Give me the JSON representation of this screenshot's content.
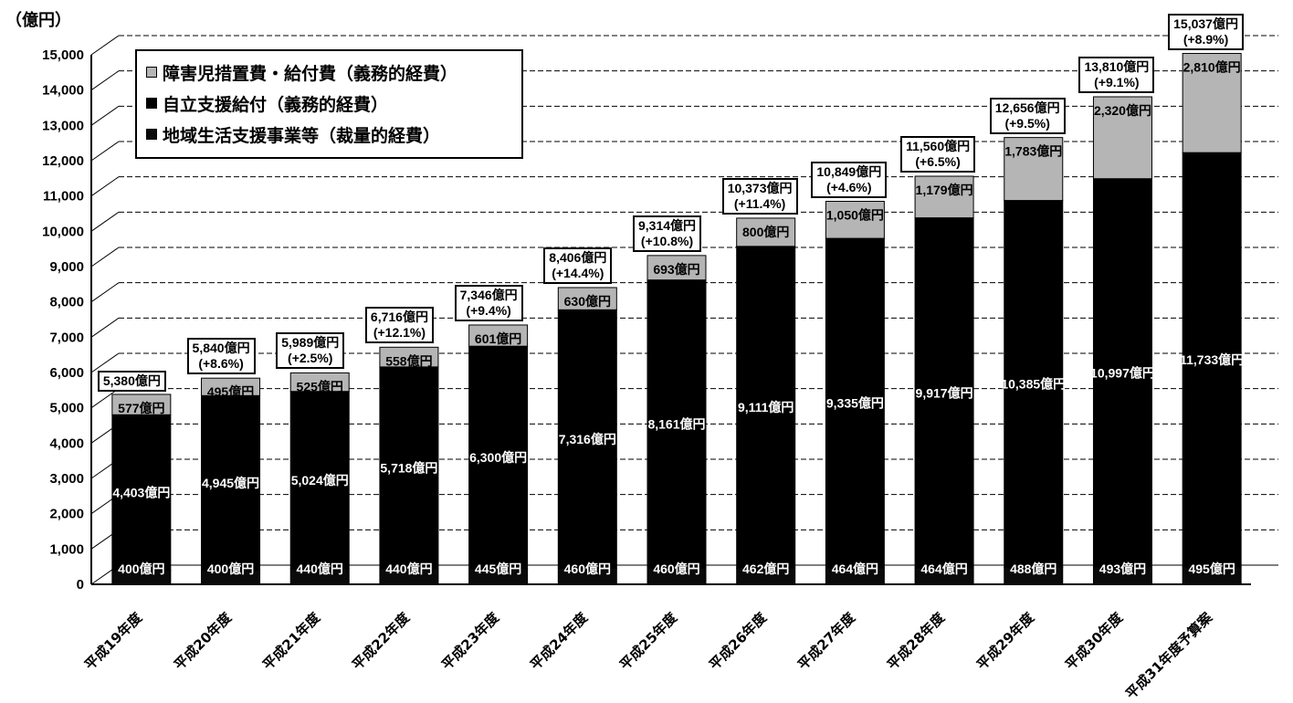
{
  "chart_data": {
    "type": "bar",
    "stacked": true,
    "ylabel": "（億円）",
    "ylim": [
      0,
      15000
    ],
    "yticks": [
      "0",
      "1,000",
      "2,000",
      "3,000",
      "4,000",
      "5,000",
      "6,000",
      "7,000",
      "8,000",
      "9,000",
      "10,000",
      "11,000",
      "12,000",
      "13,000",
      "14,000",
      "15,000"
    ],
    "grid": true,
    "legend_position": "top-left",
    "categories": [
      "平成19年度",
      "平成20年度",
      "平成21年度",
      "平成22年度",
      "平成23年度",
      "平成24年度",
      "平成25年度",
      "平成26年度",
      "平成27年度",
      "平成28年度",
      "平成29年度",
      "平成30年度",
      "平成31年度予算案"
    ],
    "series": [
      {
        "name": "地域生活支援事業等（裁量的経費）",
        "values": [
          400,
          400,
          440,
          440,
          445,
          460,
          460,
          462,
          464,
          464,
          488,
          493,
          495
        ],
        "labels": [
          "400億円",
          "400億円",
          "440億円",
          "440億円",
          "445億円",
          "460億円",
          "460億円",
          "462億円",
          "464億円",
          "464億円",
          "488億円",
          "493億円",
          "495億円"
        ],
        "color": "#0a0a0a"
      },
      {
        "name": "自立支援給付（義務的経費）",
        "values": [
          4403,
          4945,
          5024,
          5718,
          6300,
          7316,
          8161,
          9111,
          9335,
          9917,
          10385,
          10997,
          11733
        ],
        "labels": [
          "4,403億円",
          "4,945億円",
          "5,024億円",
          "5,718億円",
          "6,300億円",
          "7,316億円",
          "8,161億円",
          "9,111億円",
          "9,335億円",
          "9,917億円",
          "10,385億円",
          "10,997億円",
          "11,733億円"
        ],
        "color": "#000000"
      },
      {
        "name": "障害児措置費・給付費（義務的経費）",
        "values": [
          577,
          495,
          525,
          558,
          601,
          630,
          693,
          800,
          1050,
          1179,
          1783,
          2320,
          2810
        ],
        "labels": [
          "577億円",
          "495億円",
          "525億円",
          "558億円",
          "601億円",
          "630億円",
          "693億円",
          "800億円",
          "1,050億円",
          "1,179億円",
          "1,783億円",
          "2,320億円",
          "2,810億円"
        ],
        "color": "#b5b5b5"
      }
    ],
    "totals": [
      {
        "value": "5,380億円",
        "change": ""
      },
      {
        "value": "5,840億円",
        "change": "(+8.6%)"
      },
      {
        "value": "5,989億円",
        "change": "(+2.5%)"
      },
      {
        "value": "6,716億円",
        "change": "(+12.1%)"
      },
      {
        "value": "7,346億円",
        "change": "(+9.4%)"
      },
      {
        "value": "8,406億円",
        "change": "(+14.4%)"
      },
      {
        "value": "9,314億円",
        "change": "(+10.8%)"
      },
      {
        "value": "10,373億円",
        "change": "(+11.4%)"
      },
      {
        "value": "10,849億円",
        "change": "(+4.6%)"
      },
      {
        "value": "11,560億円",
        "change": "(+6.5%)"
      },
      {
        "value": "12,656億円",
        "change": "(+9.5%)"
      },
      {
        "value": "13,810億円",
        "change": "(+9.1%)"
      },
      {
        "value": "15,037億円",
        "change": "(+8.9%)"
      }
    ]
  },
  "legend": [
    {
      "label": "障害児措置費・給付費（義務的経費）",
      "color": "#b5b5b5"
    },
    {
      "label": "自立支援給付（義務的経費）",
      "color": "#000000"
    },
    {
      "label": "地域生活支援事業等（裁量的経費）",
      "color": "#0a0a0a"
    }
  ]
}
